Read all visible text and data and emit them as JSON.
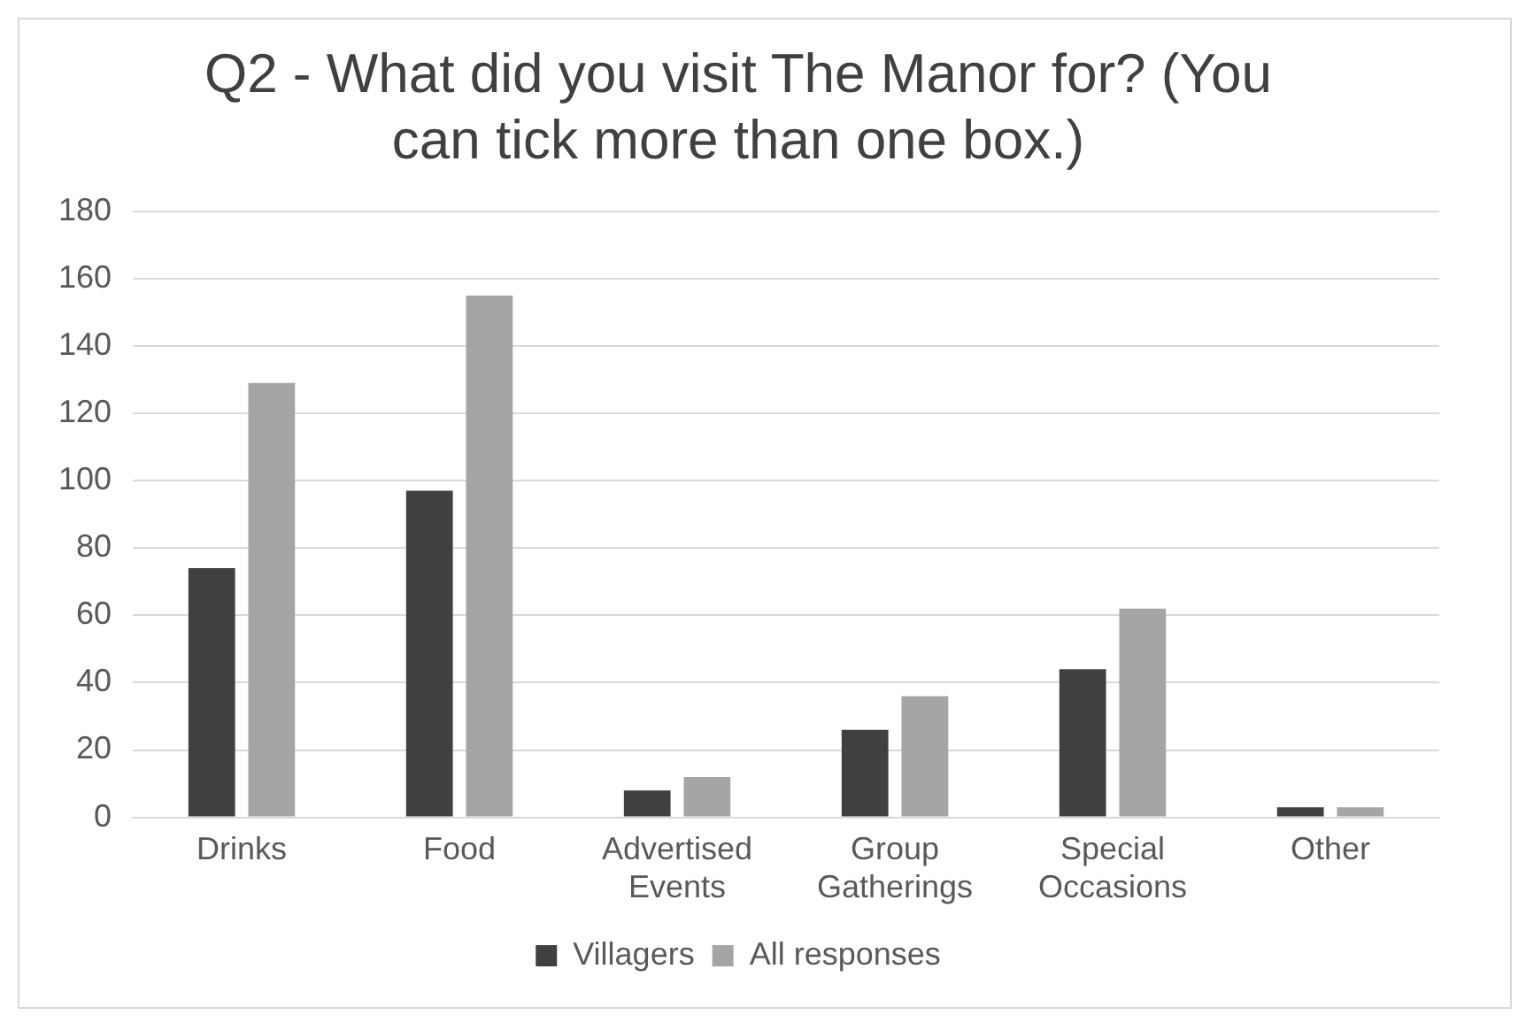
{
  "chart_data": {
    "type": "bar",
    "title": "Q2 - What did you visit The Manor for? (You can tick more than one box.)",
    "categories": [
      "Drinks",
      "Food",
      "Advertised Events",
      "Group Gatherings",
      "Special Occasions",
      "Other"
    ],
    "series": [
      {
        "name": "Villagers",
        "color": "#404040",
        "values": [
          74,
          97,
          8,
          26,
          44,
          3
        ]
      },
      {
        "name": "All responses",
        "color": "#a5a5a5",
        "values": [
          129,
          155,
          12,
          36,
          62,
          3
        ]
      }
    ],
    "ylim": [
      0,
      180
    ],
    "yticks": [
      0,
      20,
      40,
      60,
      80,
      100,
      120,
      140,
      160,
      180
    ],
    "grid": "y",
    "legend": "bottom"
  }
}
